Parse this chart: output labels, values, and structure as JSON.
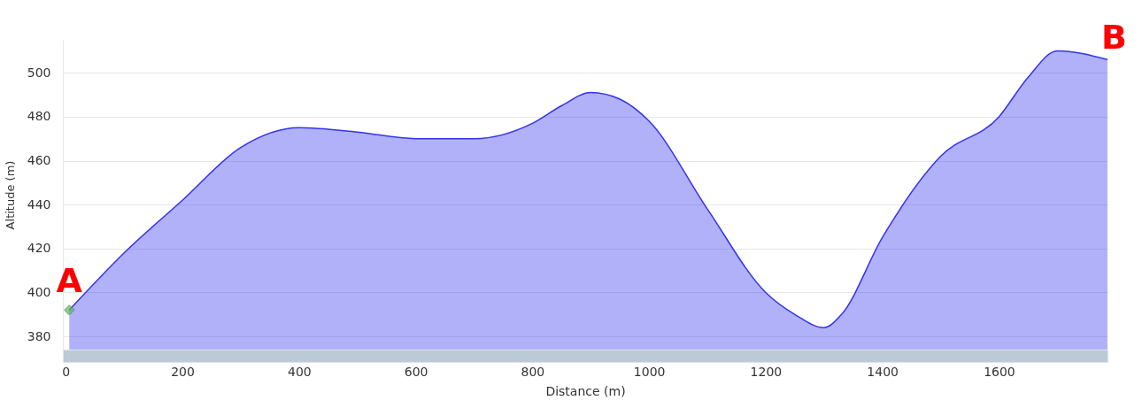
{
  "chart_data": {
    "type": "area",
    "xlabel": "Distance (m)",
    "ylabel": "Altitude (m)",
    "xlim": [
      -5,
      1786
    ],
    "ylim": [
      374,
      515
    ],
    "xticks": [
      0,
      200,
      400,
      600,
      800,
      1000,
      1200,
      1400,
      1600
    ],
    "yticks": [
      380,
      400,
      420,
      440,
      460,
      480,
      500
    ],
    "grid": "y",
    "series": [
      {
        "color": "#3333ee",
        "x": [
          6,
          100,
          200,
          300,
          400,
          500,
          600,
          700,
          800,
          850,
          900,
          950,
          1000,
          1100,
          1200,
          1250,
          1300,
          1330,
          1400,
          1500,
          1600,
          1650,
          1700,
          1786
        ],
        "values": [
          392,
          418,
          442,
          466,
          475,
          473,
          470,
          470,
          477,
          485,
          491,
          488,
          478,
          438,
          400,
          390,
          384,
          390,
          425,
          462,
          480,
          498,
          510,
          506
        ]
      },
      {
        "type": "scatter",
        "color": "#5cb85c",
        "marker": "diamond",
        "x": [
          6
        ],
        "values": [
          392
        ]
      }
    ],
    "annotations": [
      {
        "text": "A",
        "x": 6,
        "y": 392
      },
      {
        "text": "B",
        "x": 1786,
        "y": 506
      }
    ]
  }
}
